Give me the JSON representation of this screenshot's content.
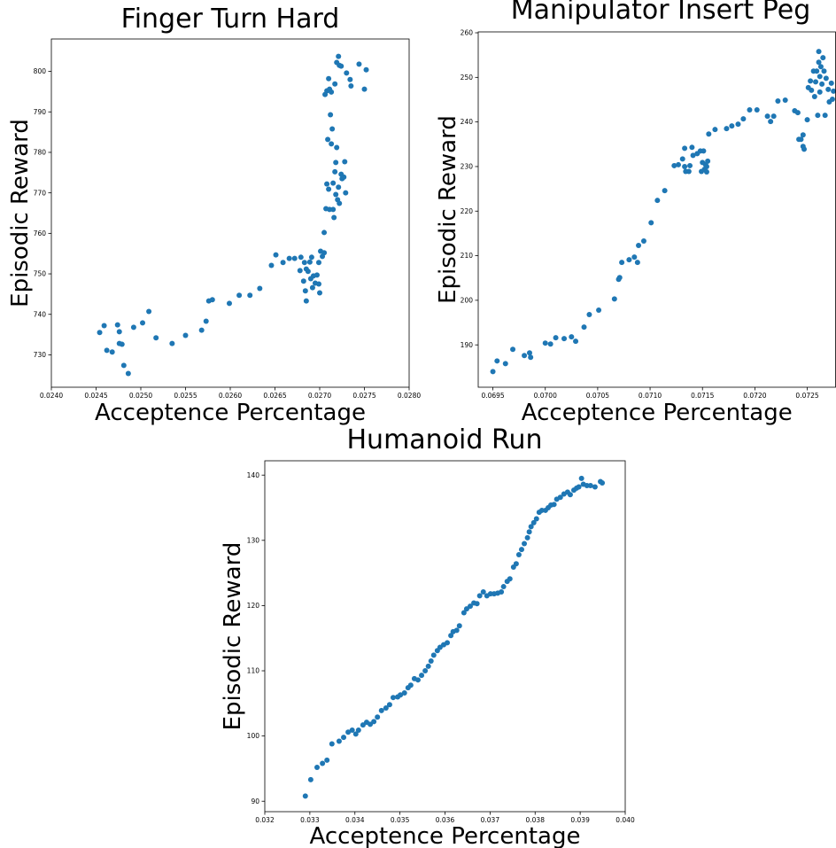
{
  "chart_data": [
    {
      "type": "scatter",
      "title": "Finger Turn Hard",
      "xlabel": "Acceptence Percentage",
      "ylabel": "Episodic Reward",
      "color": "#1f77b4",
      "xlim": [
        0.024,
        0.028
      ],
      "ylim": [
        722,
        808
      ],
      "xticks": [
        {
          "value": 0.024,
          "label": "0.0240"
        },
        0.0245,
        {
          "value": 0.025,
          "label": "0.0250"
        },
        0.0255,
        {
          "value": 0.026,
          "label": "0.0260"
        },
        0.0265,
        {
          "value": 0.027,
          "label": "0.0270"
        },
        0.0275,
        {
          "value": 0.028,
          "label": "0.0280"
        }
      ],
      "yticks": [
        730,
        740,
        750,
        760,
        770,
        780,
        790,
        800
      ],
      "x": [
        0.02454,
        0.02459,
        0.02462,
        0.02468,
        0.02474,
        0.02476,
        0.02476,
        0.02479,
        0.02481,
        0.02486,
        0.02492,
        0.02502,
        0.02509,
        0.02517,
        0.02535,
        0.0255,
        0.02568,
        0.02573,
        0.02576,
        0.0258,
        0.02599,
        0.0261,
        0.02622,
        0.02633,
        0.02646,
        0.02651,
        0.02659,
        0.02666,
        0.02672,
        0.02679,
        0.02678,
        0.02683,
        0.02685,
        0.02682,
        0.02684,
        0.02685,
        0.02687,
        0.02689,
        0.02691,
        0.0269,
        0.02692,
        0.02693,
        0.02695,
        0.02697,
        0.02699,
        0.02699,
        0.027,
        0.02701,
        0.02703,
        0.02705,
        0.02705,
        0.02707,
        0.02708,
        0.02709,
        0.0271,
        0.02711,
        0.02712,
        0.02713,
        0.02714,
        0.02715,
        0.02715,
        0.02716,
        0.02717,
        0.02718,
        0.02718,
        0.02719,
        0.0272,
        0.02721,
        0.02722,
        0.02724,
        0.02725,
        0.02727,
        0.02728,
        0.02729,
        0.02706,
        0.02708,
        0.0271,
        0.02711,
        0.02713,
        0.02717,
        0.02719,
        0.02721,
        0.02722,
        0.02724,
        0.0273,
        0.02734,
        0.02735,
        0.02744,
        0.0275,
        0.02752
      ],
      "values": [
        735.5,
        737.2,
        731.1,
        730.7,
        737.4,
        735.7,
        732.8,
        732.6,
        727.4,
        725.4,
        736.8,
        737.9,
        740.7,
        734.2,
        732.8,
        734.8,
        736.1,
        738.3,
        743.3,
        743.6,
        742.7,
        744.7,
        744.7,
        746.4,
        752.1,
        754.7,
        752.8,
        753.8,
        753.8,
        754.1,
        750.8,
        752.8,
        751.2,
        748.2,
        745.8,
        743.3,
        750.6,
        752.9,
        754.1,
        748.8,
        746.6,
        749.5,
        747.7,
        749.7,
        752.8,
        747.5,
        745.3,
        755.6,
        754.3,
        755.2,
        760.2,
        766.1,
        772.2,
        783.2,
        770.9,
        765.9,
        789.3,
        782.1,
        785.8,
        772.4,
        765.9,
        763.9,
        775.2,
        777.5,
        769.6,
        781.2,
        768.3,
        771.4,
        767.4,
        774.6,
        773.5,
        773.9,
        777.7,
        770.0,
        794.3,
        795.2,
        798.2,
        795.6,
        794.9,
        796.9,
        802.2,
        803.7,
        801.5,
        801.3,
        799.6,
        798.0,
        796.4,
        801.8,
        795.6,
        800.4
      ]
    },
    {
      "type": "scatter",
      "title": "Manipulator Insert Peg",
      "xlabel": "Acceptence Percentage",
      "ylabel": "Episodic Reward",
      "color": "#1f77b4",
      "xlim": [
        0.06936,
        0.07277
      ],
      "ylim": [
        180.5,
        260.2
      ],
      "xticks": [
        0.0695,
        {
          "value": 0.07,
          "label": "0.0700"
        },
        0.0705,
        {
          "value": 0.071,
          "label": "0.0710"
        },
        0.0715,
        {
          "value": 0.072,
          "label": "0.0720"
        },
        0.0725
      ],
      "yticks": [
        190,
        200,
        210,
        220,
        230,
        240,
        250,
        260
      ],
      "x": [
        0.0695,
        0.06954,
        0.06962,
        0.06969,
        0.0698,
        0.06985,
        0.06986,
        0.07,
        0.07005,
        0.0701,
        0.07018,
        0.07025,
        0.07029,
        0.07037,
        0.07042,
        0.07051,
        0.07066,
        0.0707,
        0.07071,
        0.07073,
        0.0708,
        0.07085,
        0.07088,
        0.07089,
        0.07094,
        0.07101,
        0.07107,
        0.07114,
        0.07123,
        0.07127,
        0.07131,
        0.07133,
        0.07133,
        0.07134,
        0.07137,
        0.07138,
        0.0714,
        0.07141,
        0.07145,
        0.07148,
        0.07149,
        0.0715,
        0.07151,
        0.07152,
        0.07153,
        0.07154,
        0.07154,
        0.07155,
        0.07156,
        0.07162,
        0.07173,
        0.07178,
        0.07184,
        0.07189,
        0.07195,
        0.07202,
        0.07212,
        0.07215,
        0.07218,
        0.07222,
        0.07229,
        0.07238,
        0.07241,
        0.07242,
        0.07244,
        0.07246,
        0.07246,
        0.07247,
        0.0725,
        0.07251,
        0.07253,
        0.07254,
        0.07256,
        0.07257,
        0.07258,
        0.07259,
        0.0726,
        0.07261,
        0.07261,
        0.07262,
        0.07262,
        0.07263,
        0.07264,
        0.07265,
        0.07266,
        0.07267,
        0.07268,
        0.0727,
        0.07271,
        0.07273,
        0.07274,
        0.07275
      ],
      "values": [
        184.0,
        186.4,
        185.8,
        189.0,
        187.6,
        188.2,
        187.2,
        190.4,
        190.2,
        191.6,
        191.4,
        191.8,
        190.8,
        194.0,
        196.8,
        197.8,
        200.3,
        204.7,
        205.1,
        208.5,
        209.1,
        209.7,
        208.5,
        212.3,
        213.3,
        217.4,
        222.4,
        224.6,
        230.2,
        230.4,
        231.7,
        230.0,
        234.1,
        228.9,
        228.9,
        230.2,
        234.3,
        232.5,
        232.9,
        233.5,
        228.9,
        230.9,
        233.5,
        229.4,
        230.4,
        230.0,
        228.8,
        231.2,
        237.3,
        238.3,
        238.5,
        239.1,
        239.5,
        240.7,
        242.7,
        242.7,
        241.3,
        240.1,
        241.3,
        244.7,
        244.9,
        242.5,
        242.1,
        236.1,
        236.1,
        237.1,
        234.5,
        233.9,
        240.5,
        247.7,
        249.2,
        247.1,
        251.4,
        245.7,
        249.0,
        251.4,
        241.5,
        255.8,
        253.4,
        250.2,
        246.7,
        252.4,
        248.5,
        254.4,
        251.4,
        241.5,
        249.8,
        247.3,
        244.5,
        248.7,
        245.1,
        246.9
      ]
    },
    {
      "type": "scatter",
      "title": "Humanoid Run",
      "xlabel": "Acceptence Percentage",
      "ylabel": "Episodic Reward",
      "color": "#1f77b4",
      "xlim": [
        0.032,
        0.04
      ],
      "ylim": [
        88.4,
        142.2
      ],
      "xticks": [
        0.032,
        0.033,
        0.034,
        0.035,
        0.036,
        0.037,
        0.038,
        0.039,
        {
          "value": 0.04,
          "label": "0.040"
        }
      ],
      "yticks": [
        90,
        100,
        110,
        120,
        130,
        140
      ],
      "x": [
        0.0329,
        0.03302,
        0.03316,
        0.03328,
        0.03338,
        0.03349,
        0.03365,
        0.03375,
        0.03385,
        0.03394,
        0.03402,
        0.03408,
        0.03418,
        0.03426,
        0.03434,
        0.03442,
        0.0345,
        0.03459,
        0.03469,
        0.03477,
        0.03485,
        0.03495,
        0.03501,
        0.0351,
        0.03518,
        0.03524,
        0.03532,
        0.0354,
        0.03548,
        0.03556,
        0.03563,
        0.03569,
        0.03575,
        0.03583,
        0.03589,
        0.03597,
        0.03605,
        0.03613,
        0.03618,
        0.03626,
        0.03632,
        0.03642,
        0.03648,
        0.03656,
        0.03664,
        0.03671,
        0.03677,
        0.03685,
        0.03693,
        0.03701,
        0.03709,
        0.03717,
        0.03725,
        0.0373,
        0.03738,
        0.03744,
        0.03752,
        0.03758,
        0.03764,
        0.0377,
        0.03776,
        0.03783,
        0.03787,
        0.03791,
        0.03797,
        0.03803,
        0.03809,
        0.03815,
        0.03823,
        0.03829,
        0.03835,
        0.03842,
        0.03848,
        0.03856,
        0.03864,
        0.03872,
        0.03878,
        0.03886,
        0.03892,
        0.03897,
        0.03903,
        0.03907,
        0.03915,
        0.03923,
        0.03933,
        0.03945,
        0.03949
      ],
      "values": [
        90.8,
        93.3,
        95.2,
        95.8,
        96.3,
        98.8,
        99.2,
        99.8,
        100.6,
        100.9,
        100.3,
        100.9,
        101.7,
        102.1,
        101.8,
        102.2,
        102.9,
        103.9,
        104.3,
        104.8,
        105.9,
        106.0,
        106.3,
        106.6,
        107.4,
        107.8,
        108.8,
        108.6,
        109.3,
        110.0,
        110.7,
        111.5,
        112.4,
        113.1,
        113.6,
        114.0,
        114.3,
        115.4,
        116.0,
        116.2,
        116.9,
        118.9,
        119.5,
        119.9,
        120.4,
        120.3,
        121.5,
        122.1,
        121.5,
        121.8,
        121.8,
        121.9,
        122.1,
        122.9,
        123.7,
        124.1,
        125.9,
        126.4,
        127.8,
        128.6,
        129.5,
        130.4,
        131.3,
        132.1,
        132.7,
        133.3,
        134.3,
        134.6,
        134.6,
        135.0,
        135.4,
        135.5,
        136.3,
        136.6,
        137.1,
        137.4,
        137.0,
        137.7,
        138.0,
        138.2,
        139.5,
        138.6,
        138.4,
        138.4,
        138.2,
        139.0,
        138.8
      ]
    }
  ]
}
